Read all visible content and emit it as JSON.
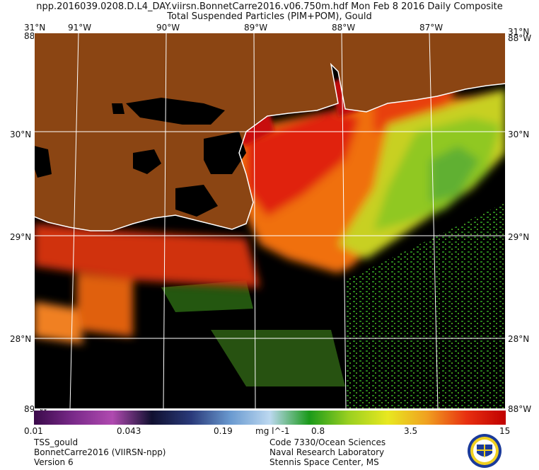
{
  "header": {
    "line1": "npp.2016039.0208.D.L4_DAY.viirsn.BonnetCarre2016.v06.750m.hdf     Mon Feb  8 2016 Daily Composite",
    "line2": "Total Suspended Particles (PIM+POM), Gould"
  },
  "map": {
    "top_lat_labels": {
      "left": "31°N",
      "right": "31°N"
    },
    "corner_w_labels": {
      "left_top": "88°W",
      "right_top": "88°W",
      "left_bottom": "89°W",
      "right_bottom": "88°W"
    },
    "lon_labels": [
      "91°W",
      "90°W",
      "89°W",
      "88°W",
      "87°W"
    ],
    "lat_labels": [
      "30°N",
      "29°N",
      "28°N"
    ],
    "colors": {
      "land": "#8B4513",
      "nodata": "#000000",
      "grid": "#ffffff"
    }
  },
  "colorbar": {
    "tick_labels": [
      "0.01",
      "0.043",
      "0.19",
      "0.8",
      "3.5",
      "15"
    ],
    "units": "mg l^-1",
    "stops": [
      "#3a0a4a",
      "#7a2a8a",
      "#b04ab0",
      "#101030",
      "#2a3a7a",
      "#6a9ad0",
      "#bcd8f0",
      "#1a9a1a",
      "#9ad020",
      "#e8e820",
      "#f0a020",
      "#e83010",
      "#c00000"
    ]
  },
  "footer": {
    "left": [
      "TSS_gould",
      "BonnetCarre2016 (VIIRSN-npp)",
      "Version 6"
    ],
    "right": [
      "Code 7330/Ocean Sciences",
      "Naval Research Laboratory",
      "Stennis Space Center, MS"
    ]
  }
}
